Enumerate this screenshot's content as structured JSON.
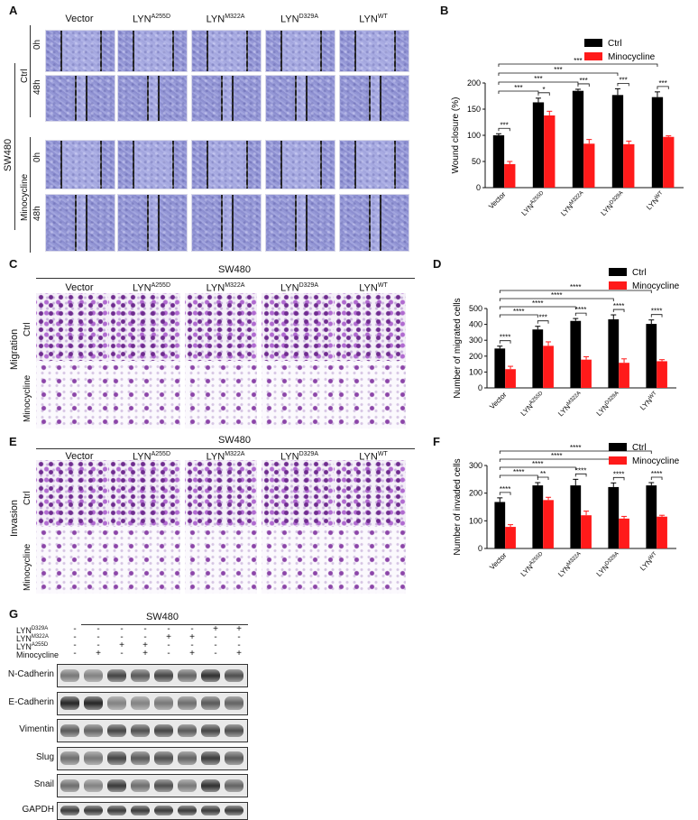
{
  "panels": {
    "A": "A",
    "B": "B",
    "C": "C",
    "D": "D",
    "E": "E",
    "F": "F",
    "G": "G"
  },
  "cell_line": "SW480",
  "groups": [
    "Vector",
    "LYN",
    "LYN",
    "LYN",
    "LYN"
  ],
  "group_sup": [
    "",
    "A255D",
    "M322A",
    "D329A",
    "WT"
  ],
  "panel_a": {
    "row_group_labels": [
      "Ctrl",
      "Minocycline"
    ],
    "time_labels": [
      "0h",
      "48h",
      "0h",
      "48h"
    ],
    "side_label": "SW480"
  },
  "panel_c": {
    "header": "SW480",
    "side_label": "Migration",
    "row_labels": [
      "Ctrl",
      "Minocycline"
    ]
  },
  "panel_e": {
    "header": "SW480",
    "side_label": "Invasion",
    "row_labels": [
      "Ctrl",
      "Minocycline"
    ]
  },
  "chart_data": [
    {
      "id": "B",
      "type": "bar",
      "categories": [
        "Vector",
        "LYNA255D",
        "LYNM322A",
        "LYND329A",
        "LYNWT"
      ],
      "series": [
        {
          "name": "Ctrl",
          "color": "#000000",
          "values": [
            100,
            163,
            185,
            177,
            173
          ],
          "errors": [
            3,
            8,
            3,
            12,
            10
          ]
        },
        {
          "name": "Minocycline",
          "color": "#ff1a1a",
          "values": [
            45,
            138,
            84,
            83,
            97
          ],
          "errors": [
            5,
            8,
            8,
            6,
            2
          ]
        }
      ],
      "ylabel": "Wound closure (%)",
      "ylim": [
        0,
        200
      ],
      "yticks": [
        0,
        50,
        100,
        150,
        200
      ],
      "pair_sig": [
        "***",
        "*",
        "***",
        "***",
        "***"
      ],
      "vector_brackets": [
        "***",
        "***",
        "***",
        "***"
      ]
    },
    {
      "id": "D",
      "type": "bar",
      "categories": [
        "Vector",
        "LYNA255D",
        "LYNM322A",
        "LYND329A",
        "LYNWT"
      ],
      "series": [
        {
          "name": "Ctrl",
          "color": "#000000",
          "values": [
            248,
            368,
            422,
            432,
            403
          ],
          "errors": [
            15,
            20,
            15,
            28,
            25
          ]
        },
        {
          "name": "Minocycline",
          "color": "#ff1a1a",
          "values": [
            118,
            265,
            178,
            158,
            168
          ],
          "errors": [
            18,
            25,
            18,
            25,
            10
          ]
        }
      ],
      "ylabel": "Number of migrated cells",
      "ylim": [
        0,
        500
      ],
      "yticks": [
        0,
        100,
        200,
        300,
        400,
        500
      ],
      "pair_sig": [
        "****",
        "***",
        "****",
        "****",
        "****"
      ],
      "vector_brackets": [
        "****",
        "****",
        "****",
        "****"
      ]
    },
    {
      "id": "F",
      "type": "bar",
      "categories": [
        "Vector",
        "LYNA255D",
        "LYNM322A",
        "LYND329A",
        "LYNWT"
      ],
      "series": [
        {
          "name": "Ctrl",
          "color": "#000000",
          "values": [
            168,
            228,
            228,
            222,
            228
          ],
          "errors": [
            15,
            10,
            22,
            15,
            10
          ]
        },
        {
          "name": "Minocycline",
          "color": "#ff1a1a",
          "values": [
            78,
            175,
            120,
            108,
            115
          ],
          "errors": [
            8,
            10,
            15,
            8,
            5
          ]
        }
      ],
      "ylabel": "Number of invaded cells",
      "ylim": [
        0,
        300
      ],
      "yticks": [
        0,
        100,
        200,
        300
      ],
      "pair_sig": [
        "****",
        "**",
        "****",
        "****",
        "****"
      ],
      "vector_brackets": [
        "****",
        "****",
        "****",
        "****"
      ]
    }
  ],
  "panel_g": {
    "header": "SW480",
    "row_labels": [
      "LYND329A",
      "LYNM322A",
      "LYNA255D",
      "Minocycline"
    ],
    "row_base": [
      "LYN",
      "LYN",
      "LYN",
      "Minocycline"
    ],
    "row_sup": [
      "D329A",
      "M322A",
      "A255D",
      ""
    ],
    "signs": [
      [
        "-",
        "-",
        "-",
        "-",
        "-",
        "-",
        "+",
        "+"
      ],
      [
        "-",
        "-",
        "-",
        "-",
        "+",
        "+",
        "-",
        "-"
      ],
      [
        "-",
        "-",
        "+",
        "+",
        "-",
        "-",
        "-",
        "-"
      ],
      [
        "-",
        "+",
        "-",
        "+",
        "-",
        "+",
        "-",
        "+"
      ]
    ],
    "blots": [
      "N-Cadherin",
      "E-Cadherin",
      "Vimentin",
      "Slug",
      "Snail",
      "GAPDH"
    ],
    "band_intensity": [
      [
        0.55,
        0.5,
        0.8,
        0.7,
        0.8,
        0.65,
        0.9,
        0.75
      ],
      [
        0.95,
        0.95,
        0.5,
        0.5,
        0.55,
        0.6,
        0.7,
        0.65
      ],
      [
        0.7,
        0.65,
        0.8,
        0.75,
        0.8,
        0.7,
        0.8,
        0.75
      ],
      [
        0.6,
        0.55,
        0.8,
        0.7,
        0.75,
        0.65,
        0.85,
        0.7
      ],
      [
        0.6,
        0.5,
        0.85,
        0.6,
        0.75,
        0.55,
        0.9,
        0.65
      ],
      [
        0.85,
        0.85,
        0.85,
        0.85,
        0.85,
        0.85,
        0.85,
        0.85
      ]
    ]
  }
}
